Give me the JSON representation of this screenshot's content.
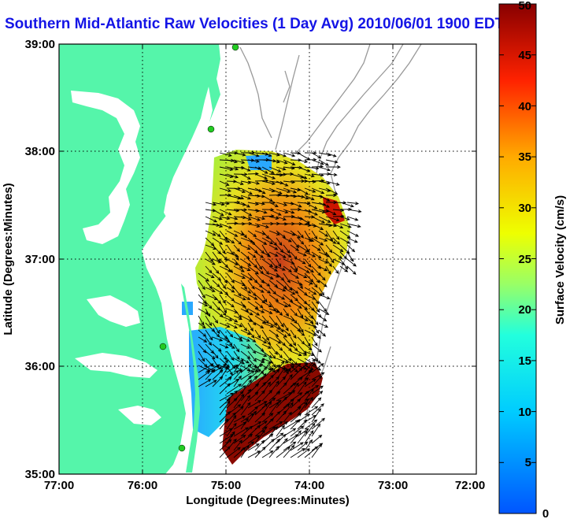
{
  "title": "Southern Mid-Atlantic Raw Velocities (1 Day Avg) 2010/06/01 1900 EDT",
  "xaxis": {
    "label": "Longitude (Degrees:Minutes)",
    "ticks": [
      "77:00",
      "76:00",
      "75:00",
      "74:00",
      "73:00",
      "72:00"
    ]
  },
  "yaxis": {
    "label": "Latitude (Degrees:Minutes)",
    "ticks": [
      "39:00",
      "38:00",
      "37:00",
      "36:00",
      "35:00"
    ]
  },
  "colorbar": {
    "label": "Surface Velocity (cm/s)",
    "ticks": [
      "50",
      "45",
      "40",
      "35",
      "30",
      "25",
      "20",
      "15",
      "10",
      "5",
      "0"
    ],
    "min": 0,
    "max": 50
  },
  "colors": {
    "land": "#55f5aa",
    "title": "#1414e6",
    "bathymetry": "#999999",
    "station": "#22cc22"
  }
}
